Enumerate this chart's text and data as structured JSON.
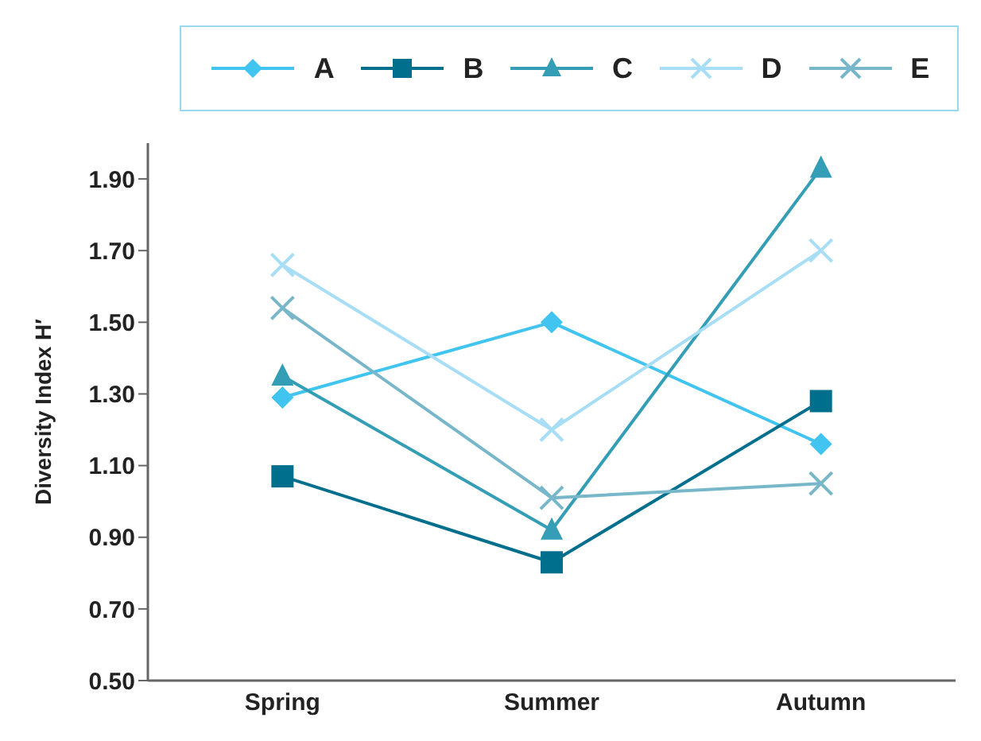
{
  "chart_data": {
    "type": "line",
    "ylabel": "Diversity Index H′",
    "categories": [
      "Spring",
      "Summer",
      "Autumn"
    ],
    "series": [
      {
        "name": "A",
        "color": "#41c4f0",
        "marker": "diamond",
        "values": [
          1.29,
          1.5,
          1.16
        ]
      },
      {
        "name": "B",
        "color": "#006f8e",
        "marker": "square",
        "values": [
          1.07,
          0.83,
          1.28
        ]
      },
      {
        "name": "C",
        "color": "#339eb5",
        "marker": "triangle",
        "values": [
          1.35,
          0.92,
          1.93
        ]
      },
      {
        "name": "D",
        "color": "#a8def5",
        "marker": "cross",
        "values": [
          1.66,
          1.2,
          1.7
        ]
      },
      {
        "name": "E",
        "color": "#78b6c9",
        "marker": "cross",
        "values": [
          1.54,
          1.01,
          1.05
        ]
      }
    ],
    "ylim": [
      0.5,
      2.0
    ],
    "yticks": [
      {
        "value": 0.5,
        "label": "0.50"
      },
      {
        "value": 0.7,
        "label": "0.70"
      },
      {
        "value": 0.9,
        "label": "0.90"
      },
      {
        "value": 1.1,
        "label": "1.10"
      },
      {
        "value": 1.3,
        "label": "1.30"
      },
      {
        "value": 1.5,
        "label": "1.50"
      },
      {
        "value": 1.7,
        "label": "1.70"
      },
      {
        "value": 1.9,
        "label": "1.90"
      }
    ],
    "grid": false,
    "legend": "top"
  }
}
